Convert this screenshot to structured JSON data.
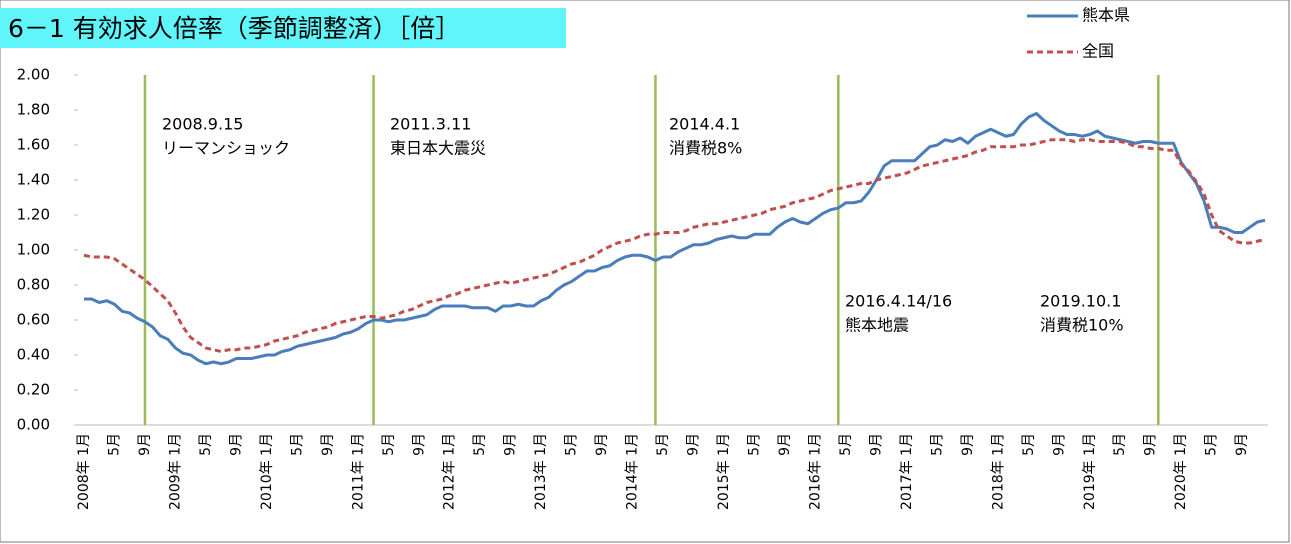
{
  "chart_data": {
    "type": "line",
    "title": "6－1 有効求人倍率（季節調整済）［倍］",
    "categories": [
      "2008年 1月",
      null,
      null,
      null,
      "5月",
      null,
      null,
      null,
      "9月",
      null,
      null,
      null,
      "2009年 1月",
      null,
      null,
      null,
      "5月",
      null,
      null,
      null,
      "9月",
      null,
      null,
      null,
      "2010年 1月",
      null,
      null,
      null,
      "5月",
      null,
      null,
      null,
      "9月",
      null,
      null,
      null,
      "2011年 1月",
      null,
      null,
      null,
      "5月",
      null,
      null,
      null,
      "9月",
      null,
      null,
      null,
      "2012年 1月",
      null,
      null,
      null,
      "5月",
      null,
      null,
      null,
      "9月",
      null,
      null,
      null,
      "2013年 1月",
      null,
      null,
      null,
      "5月",
      null,
      null,
      null,
      "9月",
      null,
      null,
      null,
      "2014年 1月",
      null,
      null,
      null,
      "5月",
      null,
      null,
      null,
      "9月",
      null,
      null,
      null,
      "2015年 1月",
      null,
      null,
      null,
      "5月",
      null,
      null,
      null,
      "9月",
      null,
      null,
      null,
      "2016年 1月",
      null,
      null,
      null,
      "5月",
      null,
      null,
      null,
      "9月",
      null,
      null,
      null,
      "2017年 1月",
      null,
      null,
      null,
      "5月",
      null,
      null,
      null,
      "9月",
      null,
      null,
      null,
      "2018年 1月",
      null,
      null,
      null,
      "5月",
      null,
      null,
      null,
      "9月",
      null,
      null,
      null,
      "2019年 1月",
      null,
      null,
      null,
      "5月",
      null,
      null,
      null,
      "9月",
      null,
      null,
      null,
      "2020年 1月",
      null,
      null,
      null,
      "5月",
      null,
      null,
      null,
      "9月",
      null,
      null,
      null
    ],
    "series": [
      {
        "name": "熊本県",
        "color": "#4a7ebb",
        "dash": false,
        "values": [
          0.72,
          0.72,
          0.7,
          0.71,
          0.69,
          0.65,
          0.64,
          0.61,
          0.59,
          0.56,
          0.51,
          0.49,
          0.44,
          0.41,
          0.4,
          0.37,
          0.35,
          0.36,
          0.35,
          0.36,
          0.38,
          0.38,
          0.38,
          0.39,
          0.4,
          0.4,
          0.42,
          0.43,
          0.45,
          0.46,
          0.47,
          0.48,
          0.49,
          0.5,
          0.52,
          0.53,
          0.55,
          0.58,
          0.6,
          0.6,
          0.59,
          0.6,
          0.6,
          0.61,
          0.62,
          0.63,
          0.66,
          0.68,
          0.68,
          0.68,
          0.68,
          0.67,
          0.67,
          0.67,
          0.65,
          0.68,
          0.68,
          0.69,
          0.68,
          0.68,
          0.71,
          0.73,
          0.77,
          0.8,
          0.82,
          0.85,
          0.88,
          0.88,
          0.9,
          0.91,
          0.94,
          0.96,
          0.97,
          0.97,
          0.96,
          0.94,
          0.96,
          0.96,
          0.99,
          1.01,
          1.03,
          1.03,
          1.04,
          1.06,
          1.07,
          1.08,
          1.07,
          1.07,
          1.09,
          1.09,
          1.09,
          1.13,
          1.16,
          1.18,
          1.16,
          1.15,
          1.18,
          1.21,
          1.23,
          1.24,
          1.27,
          1.27,
          1.28,
          1.33,
          1.4,
          1.48,
          1.51,
          1.51,
          1.51,
          1.51,
          1.55,
          1.59,
          1.6,
          1.63,
          1.62,
          1.64,
          1.61,
          1.65,
          1.67,
          1.69,
          1.67,
          1.65,
          1.66,
          1.72,
          1.76,
          1.78,
          1.74,
          1.71,
          1.68,
          1.66,
          1.66,
          1.65,
          1.66,
          1.68,
          1.65,
          1.64,
          1.63,
          1.62,
          1.61,
          1.62,
          1.62,
          1.61,
          1.61,
          1.61,
          1.5,
          1.44,
          1.38,
          1.28,
          1.13,
          1.13,
          1.12,
          1.1,
          1.1,
          1.13,
          1.16,
          1.17
        ]
      },
      {
        "name": "全国",
        "color": "#c0504d",
        "dash": true,
        "values": [
          0.97,
          0.96,
          0.96,
          0.96,
          0.95,
          0.92,
          0.89,
          0.86,
          0.83,
          0.79,
          0.75,
          0.71,
          0.64,
          0.56,
          0.5,
          0.47,
          0.44,
          0.43,
          0.42,
          0.43,
          0.43,
          0.44,
          0.44,
          0.45,
          0.46,
          0.48,
          0.49,
          0.5,
          0.51,
          0.53,
          0.54,
          0.55,
          0.56,
          0.58,
          0.59,
          0.6,
          0.61,
          0.62,
          0.62,
          0.61,
          0.62,
          0.63,
          0.65,
          0.66,
          0.68,
          0.7,
          0.71,
          0.72,
          0.74,
          0.75,
          0.77,
          0.78,
          0.79,
          0.8,
          0.81,
          0.82,
          0.81,
          0.82,
          0.83,
          0.84,
          0.85,
          0.86,
          0.88,
          0.9,
          0.92,
          0.93,
          0.95,
          0.97,
          1.0,
          1.02,
          1.04,
          1.05,
          1.06,
          1.08,
          1.09,
          1.09,
          1.1,
          1.1,
          1.1,
          1.11,
          1.13,
          1.14,
          1.15,
          1.15,
          1.16,
          1.17,
          1.18,
          1.19,
          1.2,
          1.21,
          1.23,
          1.24,
          1.25,
          1.27,
          1.28,
          1.29,
          1.3,
          1.32,
          1.34,
          1.35,
          1.36,
          1.37,
          1.38,
          1.38,
          1.4,
          1.41,
          1.42,
          1.43,
          1.44,
          1.46,
          1.48,
          1.49,
          1.5,
          1.51,
          1.52,
          1.53,
          1.54,
          1.56,
          1.57,
          1.59,
          1.59,
          1.59,
          1.59,
          1.6,
          1.6,
          1.61,
          1.62,
          1.63,
          1.63,
          1.63,
          1.62,
          1.63,
          1.63,
          1.62,
          1.62,
          1.62,
          1.62,
          1.61,
          1.59,
          1.59,
          1.58,
          1.58,
          1.57,
          1.57,
          1.49,
          1.45,
          1.39,
          1.32,
          1.2,
          1.11,
          1.08,
          1.05,
          1.04,
          1.04,
          1.05,
          1.06
        ]
      }
    ],
    "ylim": [
      0,
      2
    ],
    "yticks": [
      {
        "value": 0,
        "label": "0.00"
      },
      {
        "value": 0.2,
        "label": "0.20"
      },
      {
        "value": 0.4,
        "label": "0.40"
      },
      {
        "value": 0.6,
        "label": "0.60"
      },
      {
        "value": 0.8,
        "label": "0.80"
      },
      {
        "value": 1,
        "label": "1.00"
      },
      {
        "value": 1.2,
        "label": "1.20"
      },
      {
        "value": 1.4,
        "label": "1.40"
      },
      {
        "value": 1.6,
        "label": "1.60"
      },
      {
        "value": 1.8,
        "label": "1.80"
      },
      {
        "value": 2,
        "label": "2.00"
      }
    ],
    "annotation_color": "#9bbb59",
    "annotations": [
      {
        "at": 8,
        "lines": [
          "2008.9.15",
          "リーマンショック"
        ]
      },
      {
        "at": 38,
        "lines": [
          "2011.3.11",
          "東日本大震災"
        ]
      },
      {
        "at": 75,
        "lines": [
          "2014.4.1",
          "消費税8%"
        ]
      },
      {
        "at": 99,
        "lines": [
          "2016.4.14/16",
          "熊本地震"
        ]
      },
      {
        "at": 141,
        "lines": [
          "2019.10.1",
          "消費税10%"
        ]
      }
    ]
  }
}
